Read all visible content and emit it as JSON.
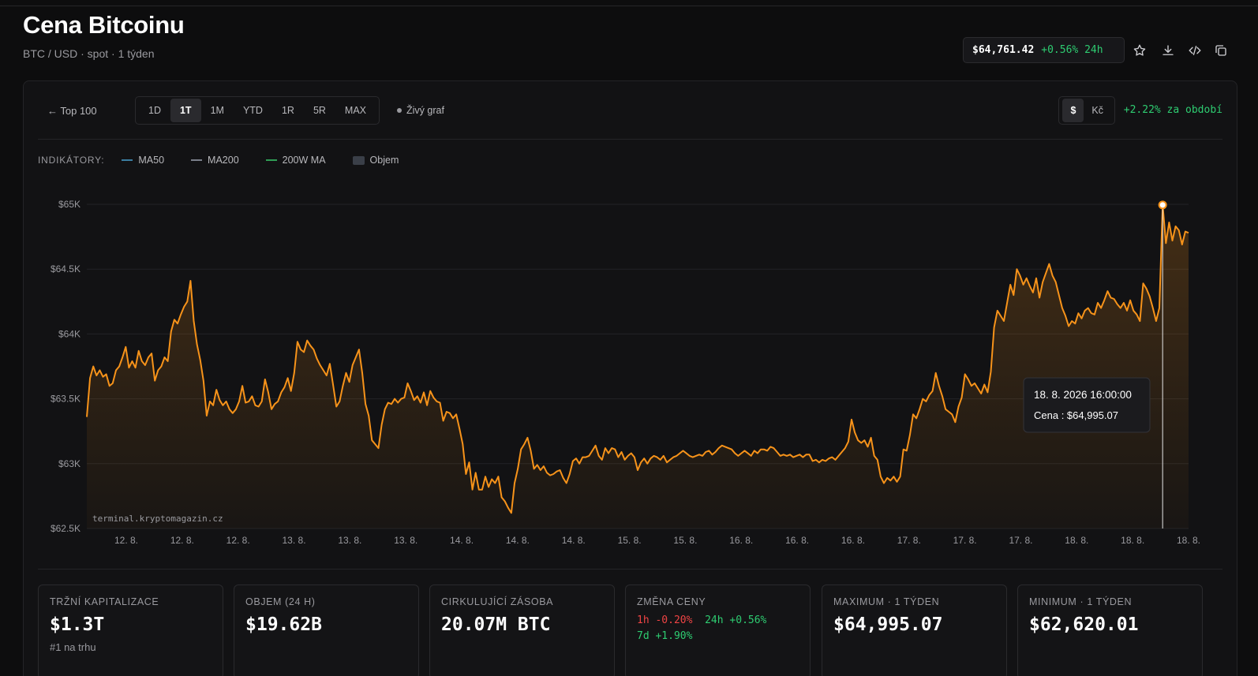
{
  "header": {
    "title": "Cena Bitcoinu",
    "subtitle": "BTC / USD · spot · 1 týden",
    "price": "$64,761.42",
    "change_24h": "+0.56% 24h",
    "icons": [
      "star-icon",
      "download-icon",
      "code-icon",
      "copy-icon"
    ]
  },
  "toolbar": {
    "back": "← Top 100",
    "ranges": [
      "1D",
      "1T",
      "1M",
      "YTD",
      "1R",
      "5R",
      "MAX"
    ],
    "active_range": "1T",
    "live": "Živý graf",
    "currencies": [
      "$",
      "Kč"
    ],
    "active_currency": "$",
    "period_change": "+2.22% za období"
  },
  "indicators": {
    "label": "INDIKÁTORY:",
    "items": [
      {
        "name": "MA50",
        "color": "#3b7ea1"
      },
      {
        "name": "MA200",
        "color": "#7a7f8a"
      },
      {
        "name": "200W MA",
        "color": "#2f9e55"
      },
      {
        "name": "Objem",
        "color": "#3a3f48"
      }
    ]
  },
  "tooltip": {
    "date": "18. 8. 2026 16:00:00",
    "price": "Cena : $64,995.07"
  },
  "watermark": "terminal.kryptomagazin.cz",
  "chart_data": {
    "type": "area",
    "series": [
      {
        "values": [
          63360,
          63660,
          63750,
          63680,
          63720,
          63670,
          63690,
          63600,
          63620,
          63720,
          63750,
          63820,
          63900,
          63740,
          63790,
          63740,
          63870,
          63790,
          63760,
          63820,
          63850,
          63640,
          63720,
          63750,
          63820,
          63790,
          64020,
          64110,
          64080,
          64150,
          64210,
          64250,
          64410,
          64100,
          63920,
          63800,
          63640,
          63370,
          63480,
          63450,
          63570,
          63490,
          63450,
          63480,
          63420,
          63390,
          63420,
          63480,
          63600,
          63470,
          63480,
          63520,
          63450,
          63440,
          63480,
          63650,
          63550,
          63420,
          63460,
          63480,
          63550,
          63590,
          63660,
          63560,
          63700,
          63940,
          63880,
          63860,
          63950,
          63910,
          63880,
          63810,
          63760,
          63720,
          63680,
          63770,
          63610,
          63440,
          63480,
          63600,
          63700,
          63630,
          63760,
          63820,
          63880,
          63700,
          63460,
          63370,
          63180,
          63150,
          63120,
          63300,
          63420,
          63470,
          63460,
          63500,
          63470,
          63500,
          63510,
          63620,
          63560,
          63490,
          63520,
          63470,
          63550,
          63450,
          63560,
          63510,
          63480,
          63470,
          63330,
          63400,
          63390,
          63350,
          63380,
          63270,
          63150,
          62920,
          63010,
          62800,
          62930,
          62800,
          62800,
          62900,
          62820,
          62880,
          62850,
          62900,
          62740,
          62710,
          62660,
          62620,
          62850,
          62960,
          63110,
          63150,
          63200,
          63100,
          62960,
          62990,
          62950,
          62980,
          62930,
          62910,
          62920,
          62940,
          62950,
          62890,
          62850,
          62920,
          63020,
          63040,
          63000,
          63050,
          63050,
          63060,
          63100,
          63140,
          63060,
          63030,
          63120,
          63080,
          63120,
          63110,
          63050,
          63090,
          63030,
          63060,
          63080,
          63050,
          62950,
          63010,
          63040,
          63000,
          63040,
          63060,
          63050,
          63030,
          63060,
          63010,
          63030,
          63050,
          63060,
          63080,
          63100,
          63080,
          63060,
          63050,
          63060,
          63070,
          63060,
          63090,
          63100,
          63070,
          63090,
          63120,
          63140,
          63130,
          63120,
          63110,
          63080,
          63060,
          63080,
          63100,
          63080,
          63060,
          63100,
          63080,
          63110,
          63110,
          63100,
          63130,
          63120,
          63090,
          63060,
          63070,
          63060,
          63070,
          63050,
          63060,
          63070,
          63050,
          63070,
          63070,
          63020,
          63030,
          63010,
          63030,
          63020,
          63040,
          63050,
          63030,
          63060,
          63090,
          63120,
          63170,
          63340,
          63240,
          63180,
          63160,
          63180,
          63130,
          63200,
          63060,
          63030,
          62900,
          62850,
          62890,
          62870,
          62900,
          62860,
          62900,
          63110,
          63100,
          63220,
          63380,
          63350,
          63420,
          63500,
          63480,
          63530,
          63560,
          63700,
          63600,
          63520,
          63420,
          63400,
          63380,
          63320,
          63440,
          63510,
          63690,
          63650,
          63600,
          63620,
          63580,
          63540,
          63610,
          63550,
          63710,
          64050,
          64180,
          64140,
          64100,
          64240,
          64380,
          64300,
          64500,
          64450,
          64380,
          64430,
          64370,
          64320,
          64430,
          64280,
          64400,
          64470,
          64540,
          64450,
          64400,
          64300,
          64200,
          64140,
          64060,
          64100,
          64080,
          64160,
          64120,
          64180,
          64200,
          64160,
          64150,
          64240,
          64200,
          64260,
          64330,
          64280,
          64270,
          64230,
          64200,
          64240,
          64180,
          64260,
          64180,
          64150,
          64100,
          64390,
          64350,
          64290,
          64200,
          64100,
          64200,
          64995,
          64700,
          64860,
          64720,
          64830,
          64800,
          64690,
          64790,
          64780
        ]
      }
    ],
    "x_ticks": [
      "12. 8.",
      "12. 8.",
      "12. 8.",
      "13. 8.",
      "13. 8.",
      "13. 8.",
      "14. 8.",
      "14. 8.",
      "14. 8.",
      "15. 8.",
      "15. 8.",
      "16. 8.",
      "16. 8.",
      "16. 8.",
      "17. 8.",
      "17. 8.",
      "17. 8.",
      "18. 8.",
      "18. 8.",
      "18. 8."
    ],
    "y_ticks": [
      "$65K",
      "$64.5K",
      "$64K",
      "$63.5K",
      "$63K",
      "$62.5K"
    ],
    "ylim": [
      62500,
      65000
    ],
    "line_color": "#f7931a",
    "highlight_value": 64995.07
  },
  "stats": [
    {
      "label": "TRŽNÍ KAPITALIZACE",
      "value": "$1.3T",
      "sub": "#1 na trhu"
    },
    {
      "label": "OBJEM (24 H)",
      "value": "$19.62B"
    },
    {
      "label": "CIRKULUJÍCÍ ZÁSOBA",
      "value": "20.07M BTC"
    },
    {
      "label": "ZMĚNA CENY",
      "change_1h": "1h -0.20%",
      "change_24h": "24h +0.56%",
      "change_7d": "7d +1.90%"
    },
    {
      "label": "MAXIMUM · 1 TÝDEN",
      "value": "$64,995.07"
    },
    {
      "label": "MINIMUM · 1 TÝDEN",
      "value": "$62,620.01"
    }
  ]
}
